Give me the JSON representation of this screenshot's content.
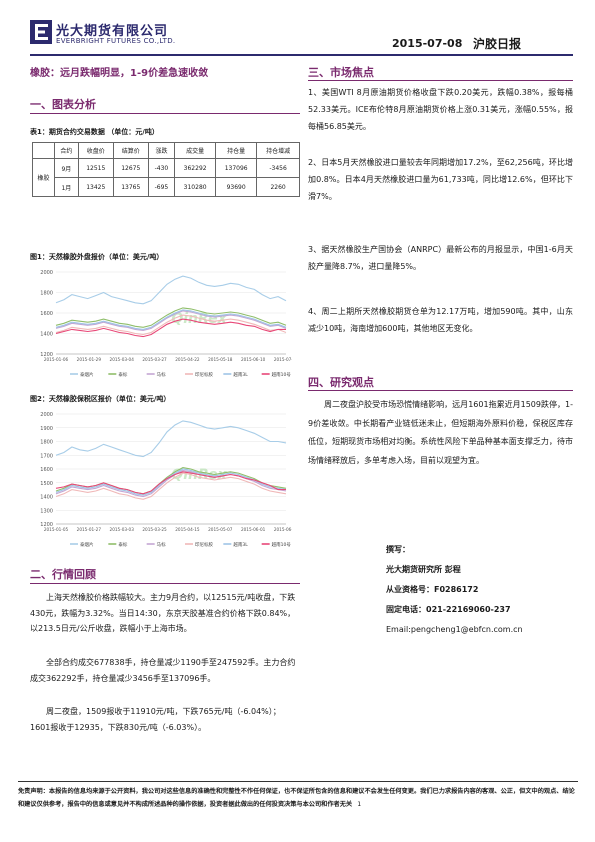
{
  "header": {
    "company_cn": "光大期货有限公司",
    "company_en": "EVERBRIGHT FUTURES CO.,LTD.",
    "date": "2015-07-08",
    "report_title": "沪胶日报",
    "brand_color": "#2c2a6e"
  },
  "headline": "橡胶：远月跌幅明显，1-9价差急速收敛",
  "sections": {
    "chart_analysis": "一、图表分析",
    "market_review": "二、行情回顾",
    "market_focus": "三、市场焦点",
    "research_view": "四、研究观点"
  },
  "table1": {
    "caption": "表1：期货合约交易数据  （单位：元/吨）",
    "headers": [
      "合约",
      "收盘价",
      "结算价",
      "涨跌",
      "成交量",
      "持仓量",
      "持仓增减"
    ],
    "row_label": "橡胶",
    "rows": [
      [
        "9月",
        "12515",
        "12675",
        "-430",
        "362292",
        "137096",
        "-3456"
      ],
      [
        "1月",
        "13425",
        "13765",
        "-695",
        "310280",
        "93690",
        "2260"
      ]
    ]
  },
  "chart_data": [
    {
      "type": "line",
      "title": "图1：天然橡胶外盘报价（单位：美元/吨）",
      "watermark": "QinRex",
      "x_ticks": [
        "2015-01-06",
        "2015-01-29",
        "2015-03-04",
        "2015-03-27",
        "2015-04-22",
        "2015-05-18",
        "2015-06-10",
        "2015-07-06"
      ],
      "ylim": [
        1200,
        2000
      ],
      "y_ticks": [
        1200,
        1400,
        1600,
        1800,
        2000
      ],
      "series": [
        {
          "name": "泰烟片",
          "color": "#a8cde8",
          "values": [
            1700,
            1730,
            1780,
            1760,
            1740,
            1770,
            1800,
            1760,
            1740,
            1720,
            1700,
            1690,
            1720,
            1800,
            1880,
            1930,
            1960,
            1940,
            1900,
            1870,
            1860,
            1870,
            1890,
            1880,
            1850,
            1830,
            1780,
            1740,
            1760,
            1720
          ]
        },
        {
          "name": "泰标",
          "color": "#8fbe6a",
          "values": [
            1480,
            1500,
            1530,
            1520,
            1510,
            1520,
            1540,
            1520,
            1500,
            1490,
            1470,
            1460,
            1480,
            1530,
            1580,
            1620,
            1650,
            1640,
            1620,
            1600,
            1590,
            1600,
            1610,
            1600,
            1580,
            1560,
            1530,
            1500,
            1510,
            1480
          ]
        },
        {
          "name": "马标",
          "color": "#c4a6d4",
          "values": [
            1450,
            1470,
            1500,
            1490,
            1480,
            1490,
            1510,
            1490,
            1470,
            1460,
            1440,
            1430,
            1450,
            1500,
            1550,
            1590,
            1620,
            1610,
            1590,
            1570,
            1560,
            1570,
            1580,
            1570,
            1550,
            1530,
            1500,
            1470,
            1480,
            1450
          ]
        },
        {
          "name": "印尼标胶",
          "color": "#f0b8b8",
          "values": [
            1410,
            1430,
            1460,
            1450,
            1440,
            1450,
            1470,
            1450,
            1430,
            1420,
            1400,
            1390,
            1410,
            1460,
            1510,
            1550,
            1580,
            1570,
            1550,
            1530,
            1520,
            1530,
            1540,
            1530,
            1510,
            1490,
            1460,
            1430,
            1440,
            1410
          ]
        },
        {
          "name": "越南3L",
          "color": "#9ec4e6",
          "values": [
            1460,
            1480,
            1510,
            1500,
            1490,
            1500,
            1520,
            1500,
            1480,
            1470,
            1450,
            1440,
            1460,
            1510,
            1560,
            1600,
            1630,
            1620,
            1600,
            1580,
            1570,
            1580,
            1590,
            1580,
            1560,
            1540,
            1510,
            1480,
            1490,
            1460
          ]
        },
        {
          "name": "越南10号",
          "color": "#e84878",
          "values": [
            1400,
            1420,
            1440,
            1430,
            1420,
            1430,
            1450,
            1430,
            1410,
            1400,
            1380,
            1370,
            1390,
            1440,
            1490,
            1520,
            1540,
            1530,
            1510,
            1500,
            1490,
            1500,
            1510,
            1500,
            1480,
            1470,
            1440,
            1420,
            1440,
            1440
          ]
        }
      ]
    },
    {
      "type": "line",
      "title": "图2：天然橡胶保税区报价（单位：美元/吨）",
      "watermark": "QinRex",
      "x_ticks": [
        "2015-01-05",
        "2015-01-27",
        "2015-03-03",
        "2015-03-25",
        "2015-04-15",
        "2015-05-07",
        "2015-06-01",
        "2015-06-24"
      ],
      "ylim": [
        1200,
        2000
      ],
      "y_ticks": [
        1200,
        1300,
        1400,
        1500,
        1600,
        1700,
        1800,
        1900,
        2000
      ],
      "series": [
        {
          "name": "泰烟片",
          "color": "#a8cde8",
          "values": [
            1700,
            1720,
            1760,
            1740,
            1730,
            1750,
            1780,
            1760,
            1740,
            1720,
            1700,
            1690,
            1720,
            1790,
            1870,
            1920,
            1950,
            1940,
            1920,
            1900,
            1890,
            1900,
            1910,
            1900,
            1880,
            1860,
            1830,
            1800,
            1800,
            1790
          ]
        },
        {
          "name": "泰标",
          "color": "#8fbe6a",
          "values": [
            1440,
            1460,
            1490,
            1480,
            1470,
            1480,
            1500,
            1480,
            1460,
            1450,
            1430,
            1420,
            1440,
            1490,
            1540,
            1580,
            1610,
            1600,
            1580,
            1570,
            1560,
            1570,
            1580,
            1570,
            1550,
            1530,
            1500,
            1480,
            1470,
            1460
          ]
        },
        {
          "name": "马标",
          "color": "#c4a6d4",
          "values": [
            1420,
            1440,
            1470,
            1460,
            1450,
            1460,
            1480,
            1460,
            1440,
            1430,
            1410,
            1400,
            1420,
            1470,
            1520,
            1560,
            1590,
            1580,
            1560,
            1550,
            1540,
            1550,
            1560,
            1550,
            1530,
            1510,
            1480,
            1460,
            1450,
            1440
          ]
        },
        {
          "name": "印尼标胶",
          "color": "#f0b8b8",
          "values": [
            1400,
            1420,
            1450,
            1440,
            1430,
            1440,
            1460,
            1440,
            1420,
            1410,
            1390,
            1380,
            1400,
            1450,
            1500,
            1540,
            1570,
            1560,
            1540,
            1530,
            1520,
            1530,
            1540,
            1530,
            1510,
            1490,
            1460,
            1440,
            1430,
            1420
          ]
        },
        {
          "name": "越南3L",
          "color": "#9ec4e6",
          "values": [
            1430,
            1450,
            1480,
            1470,
            1460,
            1470,
            1490,
            1470,
            1450,
            1440,
            1420,
            1410,
            1430,
            1480,
            1530,
            1570,
            1600,
            1590,
            1570,
            1560,
            1550,
            1560,
            1570,
            1560,
            1540,
            1520,
            1490,
            1470,
            1460,
            1450
          ]
        },
        {
          "name": "越南10号",
          "color": "#e84878",
          "values": [
            1460,
            1470,
            1490,
            1480,
            1470,
            1480,
            1500,
            1480,
            1460,
            1450,
            1430,
            1420,
            1440,
            1490,
            1530,
            1560,
            1580,
            1570,
            1560,
            1550,
            1540,
            1550,
            1560,
            1550,
            1530,
            1520,
            1500,
            1480,
            1450,
            1450
          ]
        }
      ]
    }
  ],
  "market_review": [
    "上海天然橡胶价格跌幅较大。主力9月合约，以12515元/吨收盘，下跌430元，跌幅为3.32%。当日14:30，东京天胶基准合约价格下跌0.84%，以213.5日元/公斤收盘，跌幅小于上海市场。",
    "全部合约成交677838手，持仓量减少1190手至247592手。主力合约成交362292手，持仓量减少3456手至137096手。",
    "周二夜盘，1509报收于11910元/吨，下跌765元/吨（-6.04%）；1601报收于12935，下跌830元/吨（-6.03%）。"
  ],
  "market_focus": [
    "1、美国WTI 8月原油期货价格收盘下跌0.20美元，跌幅0.38%，报每桶52.33美元。ICE布伦特8月原油期货价格上涨0.31美元，涨幅0.55%，报每桶56.85美元。",
    "2、日本5月天然橡胶进口量较去年同期增加17.2%，至62,256吨，环比增加0.8%。日本4月天然橡胶进口量为61,733吨，同比增12.6%，但环比下滑7%。",
    "3、据天然橡胶生产国协会（ANRPC）最新公布的月报显示，中国1-6月天胶产量降8.7%，进口量降5%。",
    "4、周二上期所天然橡胶期货仓单为12.17万吨，增加590吨。其中，山东减少10吨，海南增加600吨，其他地区无变化。"
  ],
  "research_view": "周二夜盘沪胶受市场恐慌情绪影响，远月1601拖累近月1509跌停，1-9价差收敛。中长期看产业链低迷未止，但短期海外原料价稳，保税区库存低位，短期现货市场相对均衡。系统性风险下单品种基本面支撑乏力，待市场情绪释放后，多单考虑入场，目前以观望为宜。",
  "author": {
    "label": "撰写：",
    "org_name": "光大期货研究所  彭程",
    "license": "从业资格号：F0286172",
    "phone": "固定电话：021-22169060-237",
    "email": "Email:pengcheng1@ebfcn.com.cn"
  },
  "disclaimer": "免责声明：本报告的信息均来源于公开资料，我公司对这些信息的准确性和完整性不作任何保证，也不保证所包含的信息和建议不会发生任何变更。我们已力求报告内容的客观、公正，但文中的观点、结论和建议仅供参考，报告中的信息或意见并不构成所述品种的操作依据，投资者据此做出的任何投资决策与本公司和作者无关",
  "page_number": "1"
}
